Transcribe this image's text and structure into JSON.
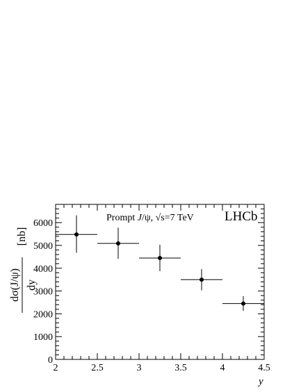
{
  "chart_data": {
    "type": "scatter",
    "title": "",
    "annotation_parts": [
      "Prompt ",
      "J",
      "/",
      "ψ",
      ", √s=7 TeV"
    ],
    "experiment_label": "LHCb",
    "xlabel": "y",
    "ylabel_numerator": "dσ(J/ψ)",
    "ylabel_denominator": "dy",
    "ylabel_unit": "[nb]",
    "xlim": [
      2,
      4.5
    ],
    "ylim": [
      0,
      6800
    ],
    "x_ticks": [
      "2",
      "2.5",
      "3",
      "3.5",
      "4",
      "4.5"
    ],
    "y_ticks": [
      "0",
      "1000",
      "2000",
      "3000",
      "4000",
      "5000",
      "6000"
    ],
    "grid": false,
    "legend": "none",
    "points": [
      {
        "x": 2.25,
        "x_low": 2.0,
        "x_high": 2.5,
        "y": 5480,
        "y_low": 4680,
        "y_high": 6320
      },
      {
        "x": 2.75,
        "x_low": 2.5,
        "x_high": 3.0,
        "y": 5090,
        "y_low": 4410,
        "y_high": 5780
      },
      {
        "x": 3.25,
        "x_low": 3.0,
        "x_high": 3.5,
        "y": 4450,
        "y_low": 3870,
        "y_high": 5030
      },
      {
        "x": 3.75,
        "x_low": 3.5,
        "x_high": 4.0,
        "y": 3500,
        "y_low": 3030,
        "y_high": 3960
      },
      {
        "x": 4.25,
        "x_low": 4.0,
        "x_high": 4.5,
        "y": 2450,
        "y_low": 2130,
        "y_high": 2780
      }
    ]
  }
}
